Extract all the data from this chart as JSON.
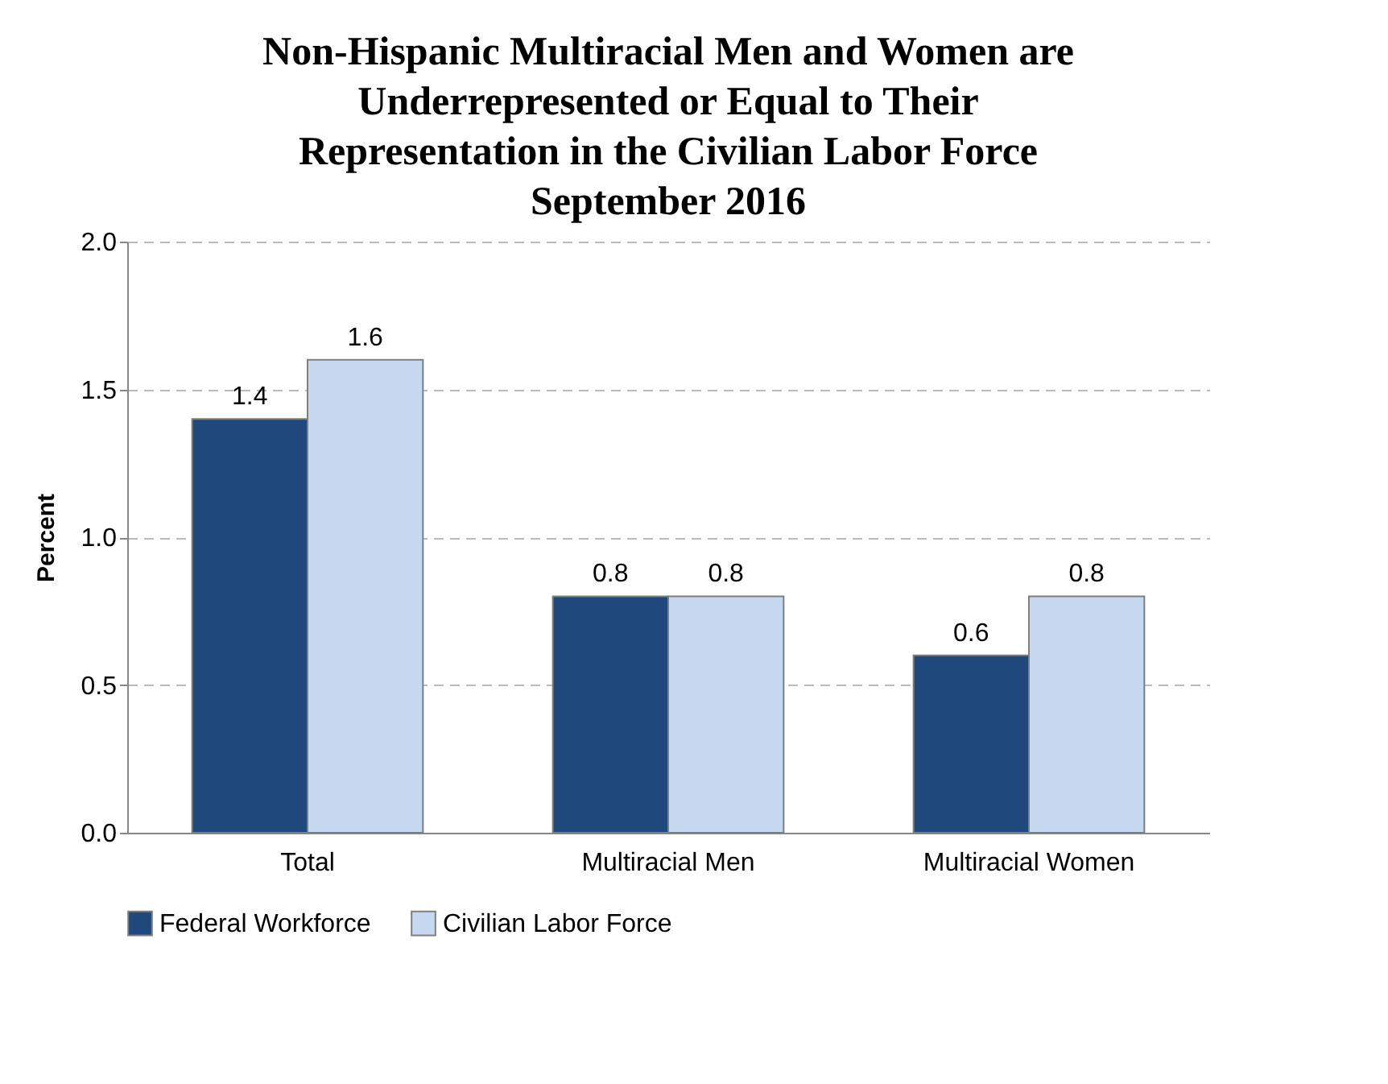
{
  "chart_data": {
    "type": "bar",
    "title": "Non-Hispanic Multiracial Men and Women are Underrepresented or Equal to Their Representation in the Civilian Labor Force September 2016",
    "ylabel": "Percent",
    "categories": [
      "Total",
      "Multiracial Men",
      "Multiracial Women"
    ],
    "series": [
      {
        "name": "Federal Workforce",
        "color": "#1f497d",
        "values": [
          1.4,
          0.8,
          0.6
        ]
      },
      {
        "name": "Civilian Labor Force",
        "color": "#c6d9f1",
        "values": [
          1.6,
          0.8,
          0.8
        ]
      }
    ],
    "ylim": [
      0,
      2
    ],
    "yticks": [
      {
        "value": 0,
        "label": "0.0"
      },
      {
        "value": 0.5,
        "label": "0.5"
      },
      {
        "value": 1,
        "label": "1.0"
      },
      {
        "value": 1.5,
        "label": "1.5"
      },
      {
        "value": 2,
        "label": "2.0"
      }
    ],
    "grid": "y",
    "legend": "bottom",
    "data_labels": true
  }
}
